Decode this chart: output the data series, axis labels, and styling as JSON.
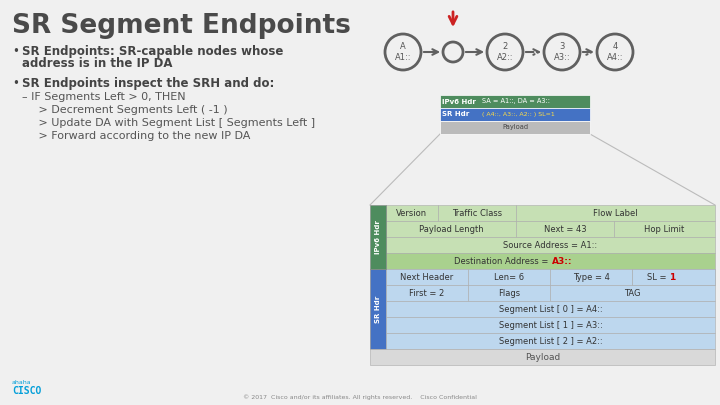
{
  "title": "SR Segment Endpoints",
  "bg_color": "#f0f0f0",
  "title_color": "#4a4a4a",
  "bullet1_line1": "SR Endpoints: SR-capable nodes whose",
  "bullet1_line2": "address is in the IP DA",
  "bullet2": "SR Endpoints inspect the SRH and do:",
  "sub1": "– IF Segments Left > 0, THEN",
  "sub2": "   > Decrement Segments Left ( -1 )",
  "sub3": "   > Update DA with Segment List [ Segments Left ]",
  "sub4": "   > Forward according to the new IP DA",
  "ipv6_green_dark": "#4e8c5e",
  "ipv6_green_light": "#c6e0b4",
  "ipv6_green_mid": "#a9d18e",
  "sr_blue_dark": "#4472c4",
  "sr_blue_light": "#bdd7ee",
  "payload_gray": "#d9d9d9",
  "table_line": "#999999",
  "footer": "© 2017  Cisco and/or its affiliates. All rights reserved.    Cisco Confidential",
  "cisco_blue": "#049fd9",
  "node_color": "#606060",
  "arrow_red": "#cc2222",
  "line_gray": "#bbbbbb"
}
